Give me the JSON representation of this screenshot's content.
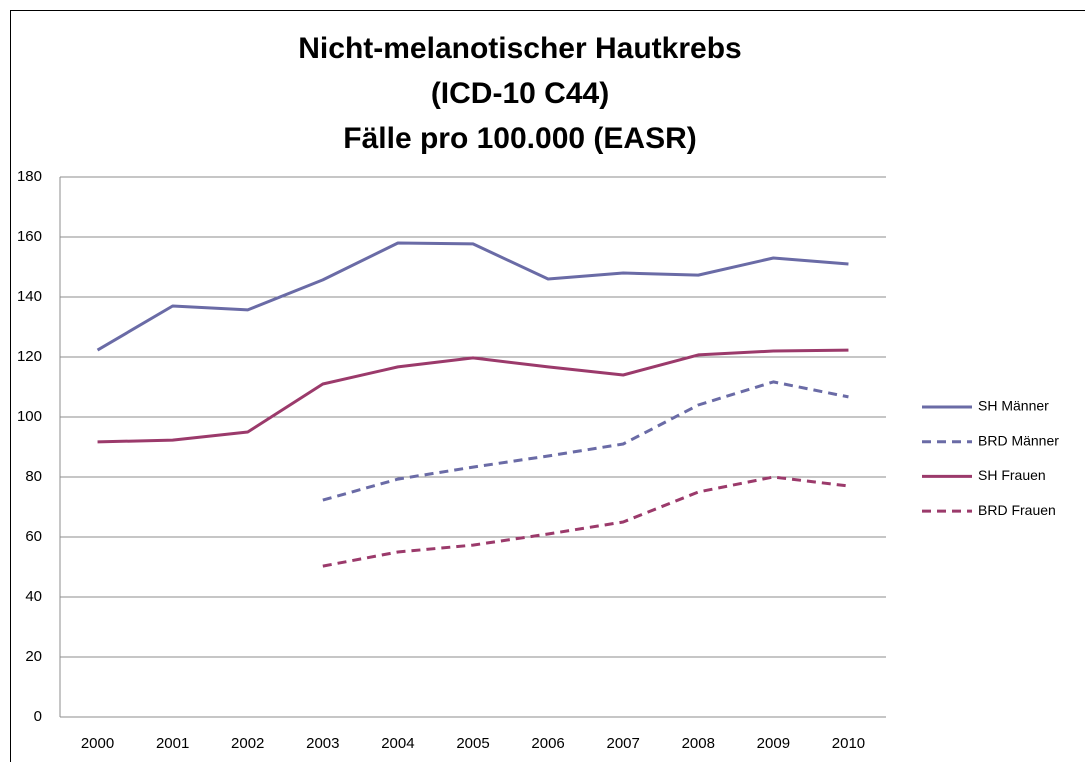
{
  "chart_data": {
    "type": "line",
    "title": [
      "Nicht-melanotischer Hautkrebs",
      "(ICD-10 C44)",
      "Fälle pro 100.000 (EASR)"
    ],
    "categories": [
      "2000",
      "2001",
      "2002",
      "2003",
      "2004",
      "2005",
      "2006",
      "2007",
      "2008",
      "2009",
      "2010"
    ],
    "series": [
      {
        "name": "SH Männer",
        "color": "#6a6ba6",
        "dashed": false,
        "values": [
          122.3,
          137,
          135.7,
          145.7,
          158,
          157.7,
          146,
          148,
          147.3,
          153,
          151
        ]
      },
      {
        "name": "BRD Männer",
        "color": "#6a6ba6",
        "dashed": true,
        "values": [
          null,
          null,
          null,
          72.3,
          79.3,
          83.3,
          87,
          91,
          104,
          111.7,
          106.7
        ]
      },
      {
        "name": "SH Frauen",
        "color": "#9b3a6b",
        "dashed": false,
        "values": [
          91.7,
          92.3,
          95,
          111,
          116.7,
          119.7,
          116.7,
          114,
          120.7,
          122,
          122.3
        ]
      },
      {
        "name": "BRD Frauen",
        "color": "#9b3a6b",
        "dashed": true,
        "values": [
          null,
          null,
          null,
          50.3,
          55,
          57.3,
          61,
          65,
          75,
          80,
          77
        ]
      }
    ],
    "ylim": [
      0,
      180
    ],
    "yticks": [
      0,
      20,
      40,
      60,
      80,
      100,
      120,
      140,
      160,
      180
    ],
    "grid": true,
    "legend": "right"
  }
}
